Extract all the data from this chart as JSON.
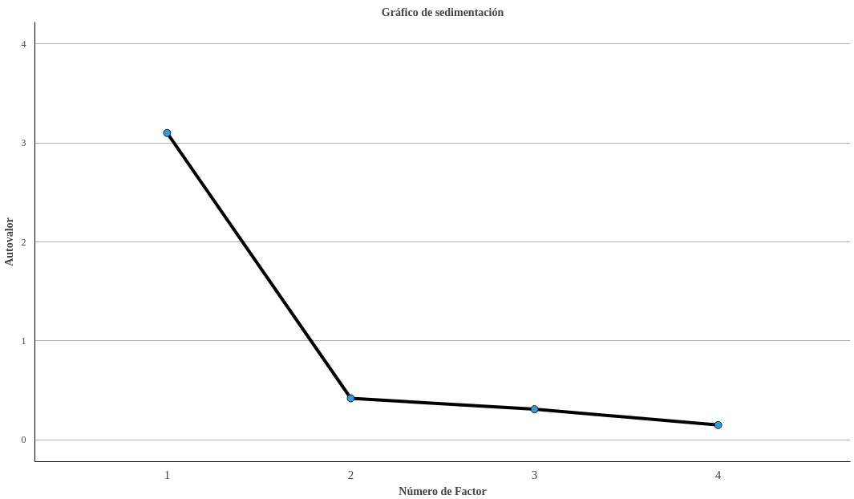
{
  "chart_data": {
    "type": "line",
    "title": "Gráfico de sedimentación",
    "xlabel": "Número de Factor",
    "ylabel": "Autovalor",
    "x": [
      1,
      2,
      3,
      4
    ],
    "series": [
      {
        "color": "#000000",
        "values": [
          3.1,
          0.42,
          0.31,
          0.15
        ]
      }
    ],
    "marker": "circle",
    "line_style": "solid",
    "xlim": [
      0.28,
      4.72
    ],
    "xticks": [
      1,
      2,
      3,
      4
    ],
    "ylim": [
      -0.22,
      4.22
    ],
    "yticks": [
      0,
      1,
      2,
      3,
      4
    ],
    "grid": "y"
  }
}
